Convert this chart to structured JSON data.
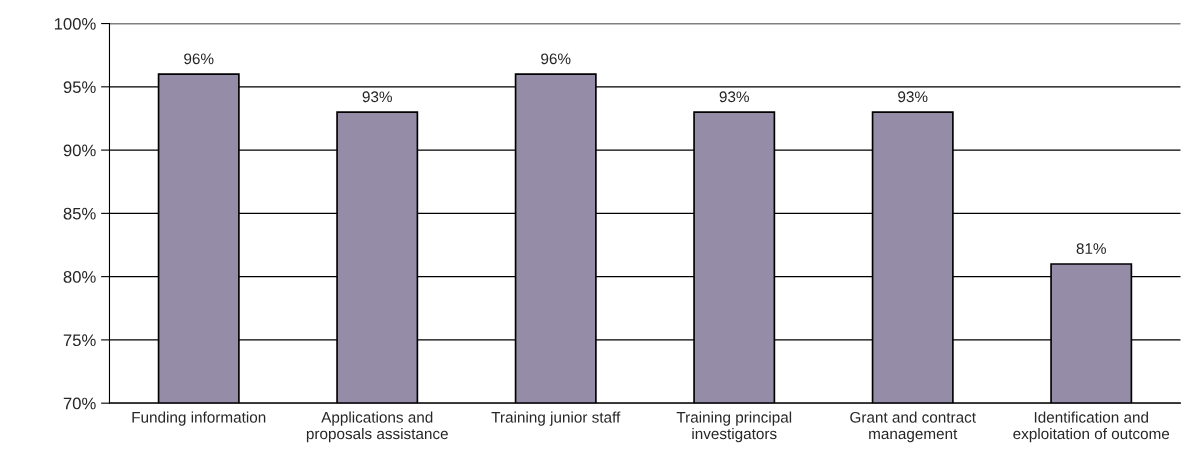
{
  "chart_data": {
    "type": "bar",
    "categories": [
      "Funding information",
      "Applications and\nproposals assistance",
      "Training junior staff",
      "Training principal\ninvestigators",
      "Grant and contract\nmanagement",
      "Identification and\nexploitation of outcome"
    ],
    "values": [
      96,
      93,
      96,
      93,
      93,
      81
    ],
    "color": "#958ca8",
    "ylim": [
      70,
      100
    ],
    "yticks": [
      {
        "value": 70,
        "label": "70%"
      },
      {
        "value": 75,
        "label": "75%"
      },
      {
        "value": 80,
        "label": "80%"
      },
      {
        "value": 85,
        "label": "85%"
      },
      {
        "value": 90,
        "label": "90%"
      },
      {
        "value": 95,
        "label": "95%"
      },
      {
        "value": 100,
        "label": "100%"
      }
    ],
    "value_labels": [
      "96%",
      "93%",
      "96%",
      "93%",
      "93%",
      "81%"
    ],
    "grid": "y"
  }
}
